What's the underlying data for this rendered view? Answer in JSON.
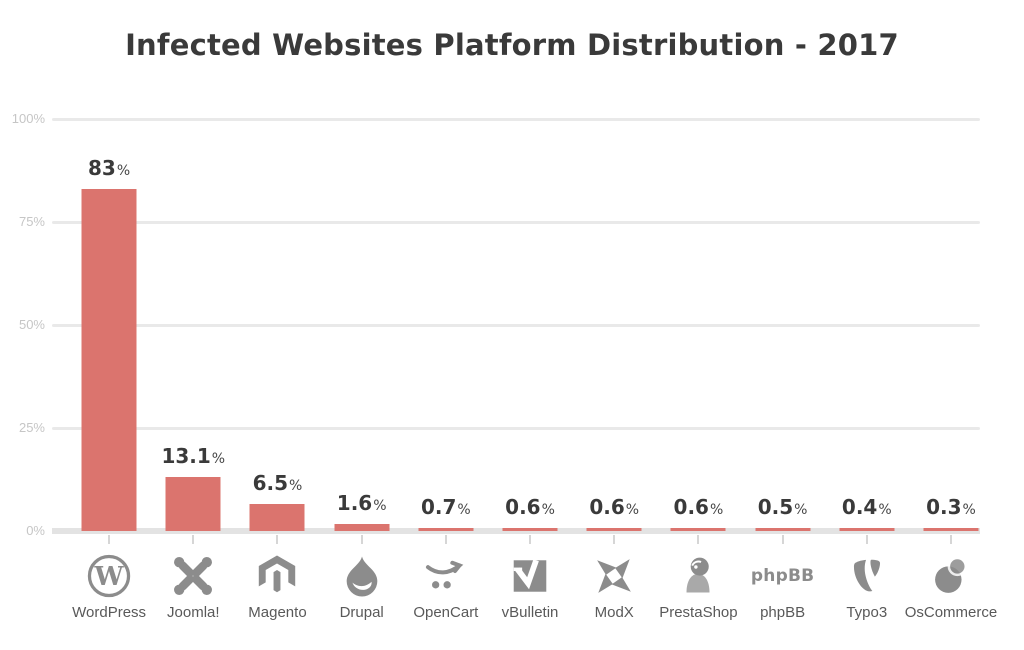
{
  "title": "Infected Websites Platform Distribution - 2017",
  "colors": {
    "bar": "#db746e",
    "grid": "#e9e9e9",
    "grid_baseline": "#e3e3e3",
    "x_tick": "#d6d6d6",
    "y_tick_label": "#c6c6c6",
    "value_label": "#3a3a3a",
    "title": "#3a3a3a",
    "category_label": "#595959",
    "icon_gray": "#8c8c8c"
  },
  "chart_data": {
    "type": "bar",
    "title": "Infected Websites Platform Distribution - 2017",
    "xlabel": "",
    "ylabel": "",
    "ylim": [
      0,
      100
    ],
    "grid": true,
    "legend": "none",
    "unit": "%",
    "y_ticks": [
      {
        "value": 0,
        "label": "0%"
      },
      {
        "value": 25,
        "label": "25%"
      },
      {
        "value": 50,
        "label": "50%"
      },
      {
        "value": 75,
        "label": "75%"
      },
      {
        "value": 100,
        "label": "100%"
      }
    ],
    "categories": [
      "WordPress",
      "Joomla!",
      "Magento",
      "Drupal",
      "OpenCart",
      "vBulletin",
      "ModX",
      "PrestaShop",
      "phpBB",
      "Typo3",
      "OsCommerce"
    ],
    "values": [
      83,
      13.1,
      6.5,
      1.6,
      0.7,
      0.6,
      0.6,
      0.6,
      0.5,
      0.4,
      0.3
    ],
    "value_labels": [
      "83",
      "13.1",
      "6.5",
      "1.6",
      "0.7",
      "0.6",
      "0.6",
      "0.6",
      "0.5",
      "0.4",
      "0.3"
    ],
    "icons": [
      "wordpress-icon",
      "joomla-icon",
      "magento-icon",
      "drupal-icon",
      "opencart-icon",
      "vbulletin-icon",
      "modx-icon",
      "prestashop-icon",
      "phpbb-icon",
      "typo3-icon",
      "oscommerce-icon"
    ],
    "phpbb_logo_text": "phpBB"
  }
}
